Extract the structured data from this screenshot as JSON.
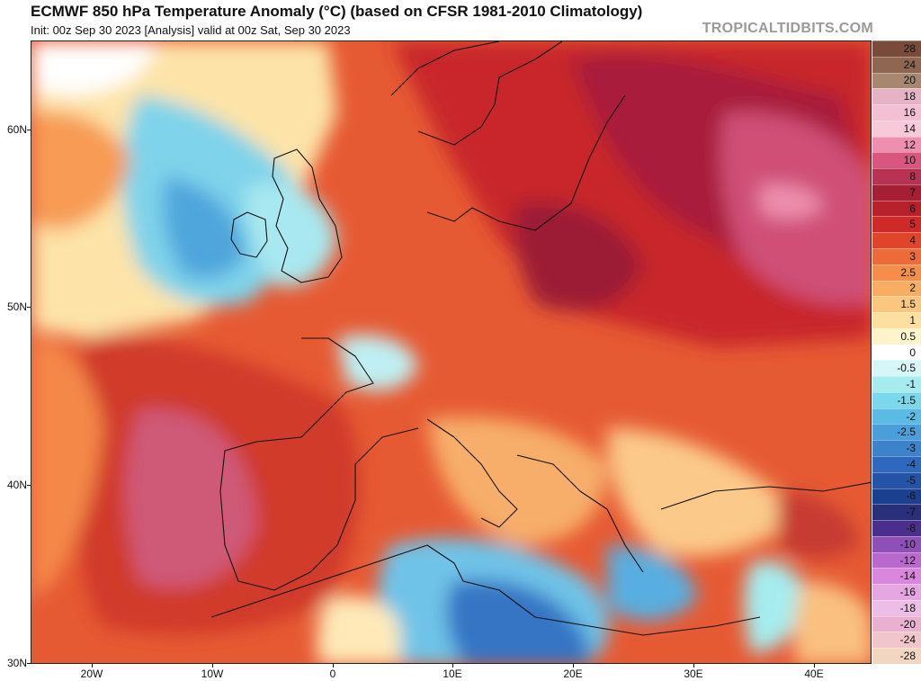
{
  "header": {
    "title": "ECMWF 850 hPa Temperature Anomaly (°C) (based on CFSR 1981-2010 Climatology)",
    "subtitle": "Init: 00z Sep 30 2023   [Analysis]   valid at 00z Sat, Sep 30 2023",
    "brand": "TROPICALTIDBITS.COM"
  },
  "axes": {
    "lat_labels": [
      "60N",
      "50N",
      "40N",
      "30N"
    ],
    "lon_labels": [
      "20W",
      "10W",
      "0",
      "10E",
      "20E",
      "30E",
      "40E"
    ]
  },
  "colorbar": {
    "levels": [
      {
        "label": "28",
        "color": "#7a4b3a"
      },
      {
        "label": "24",
        "color": "#8f6651"
      },
      {
        "label": "20",
        "color": "#a7876f"
      },
      {
        "label": "18",
        "color": "#e6b3c4"
      },
      {
        "label": "16",
        "color": "#f3bfd2"
      },
      {
        "label": "14",
        "color": "#f7c9d9"
      },
      {
        "label": "12",
        "color": "#ef8fb0"
      },
      {
        "label": "10",
        "color": "#d9577f"
      },
      {
        "label": "8",
        "color": "#b83254"
      },
      {
        "label": "7",
        "color": "#a41f33"
      },
      {
        "label": "6",
        "color": "#b7212b"
      },
      {
        "label": "5",
        "color": "#cf2a27"
      },
      {
        "label": "4",
        "color": "#e0452c"
      },
      {
        "label": "3",
        "color": "#ed6a39"
      },
      {
        "label": "2.5",
        "color": "#f58d4b"
      },
      {
        "label": "2",
        "color": "#f8ad63"
      },
      {
        "label": "1.5",
        "color": "#fbc77f"
      },
      {
        "label": "1",
        "color": "#fde09f"
      },
      {
        "label": "0.5",
        "color": "#fff3c9"
      },
      {
        "label": "0",
        "color": "#ffffff"
      },
      {
        "label": "-0.5",
        "color": "#d6f6f7"
      },
      {
        "label": "-1",
        "color": "#a6ecef"
      },
      {
        "label": "-1.5",
        "color": "#7ad8ea"
      },
      {
        "label": "-2",
        "color": "#5bbbe4"
      },
      {
        "label": "-2.5",
        "color": "#4a9fda"
      },
      {
        "label": "-3",
        "color": "#3c83cc"
      },
      {
        "label": "-4",
        "color": "#2f69bd"
      },
      {
        "label": "-5",
        "color": "#2553a8"
      },
      {
        "label": "-6",
        "color": "#1c4090"
      },
      {
        "label": "-7",
        "color": "#2a2f7a"
      },
      {
        "label": "-8",
        "color": "#4b2f8c"
      },
      {
        "label": "-10",
        "color": "#8e4fb6"
      },
      {
        "label": "-12",
        "color": "#b968cd"
      },
      {
        "label": "-14",
        "color": "#d887dc"
      },
      {
        "label": "-16",
        "color": "#e5a6e2"
      },
      {
        "label": "-18",
        "color": "#ecbde6"
      },
      {
        "label": "-20",
        "color": "#eab0cf"
      },
      {
        "label": "-24",
        "color": "#f0c6cc"
      },
      {
        "label": "-28",
        "color": "#f3d6c2"
      }
    ]
  }
}
